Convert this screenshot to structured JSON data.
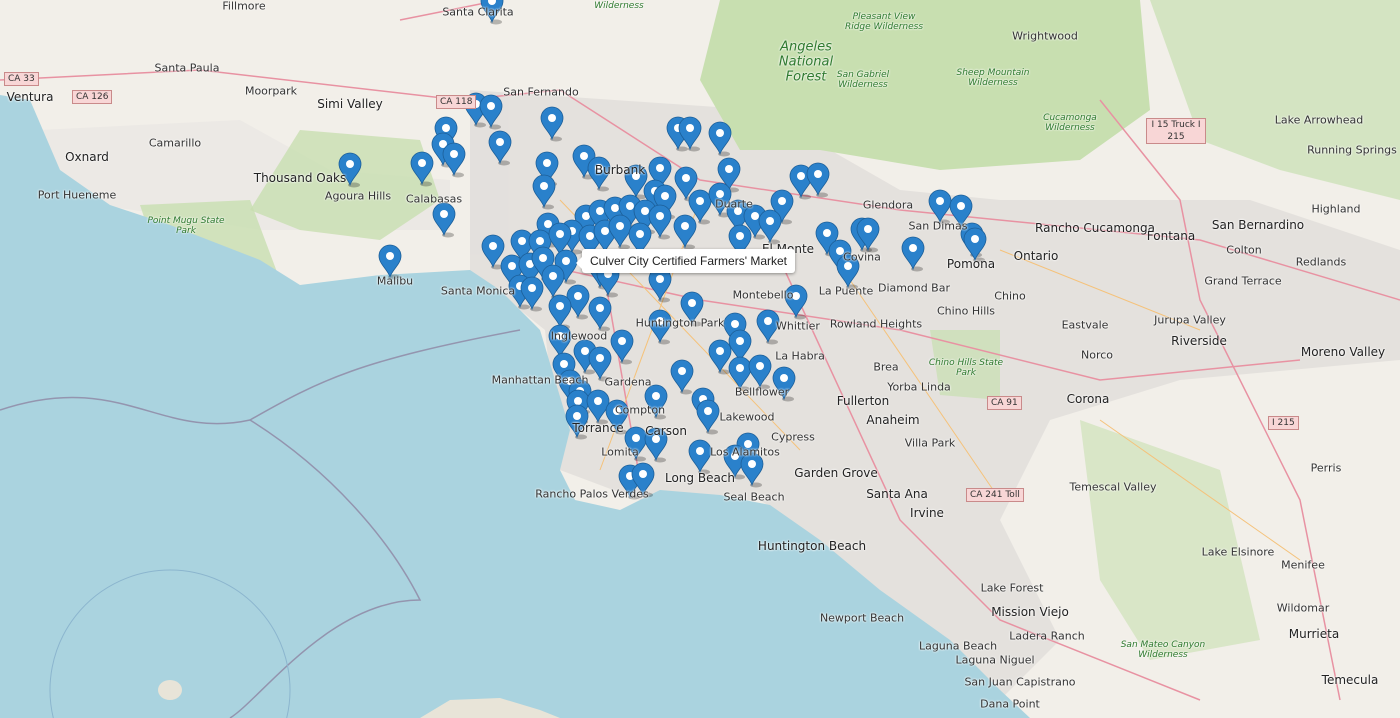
{
  "map": {
    "tile_style": "OpenStreetMap",
    "colors": {
      "ocean": "#aad3df",
      "land": "#f2efe9",
      "park": "#c8dfb0",
      "urban": "#e2dfdc",
      "marker": "#2a81cb",
      "road": "#e892a2"
    },
    "marker_icon": "map-marker-icon",
    "tooltip": "Culver City Certified Farmers' Market",
    "places": [
      "Fillmore",
      "Santa Clarita",
      "Santa Paula",
      "Ventura",
      "Simi Valley",
      "San Fernando",
      "Moorpark",
      "Oxnard",
      "Camarillo",
      "Thousand Oaks",
      "Burbank",
      "Port Hueneme",
      "Agoura Hills",
      "Calabasas",
      "Glendora",
      "San Dimas",
      "Rancho Cucamonga",
      "Fontana",
      "San Bernardino",
      "Highland",
      "Colton",
      "Redlands",
      "El Monte",
      "Covina",
      "Pomona",
      "Ontario",
      "Malibu",
      "Santa Monica",
      "Montebello",
      "La Puente",
      "Diamond Bar",
      "Chino",
      "Grand Terrace",
      "Huntington Park",
      "Whittier",
      "Rowland Heights",
      "Chino Hills",
      "Eastvale",
      "Jurupa Valley",
      "Riverside",
      "Moreno Valley",
      "Inglewood",
      "La Habra",
      "Brea",
      "Norco",
      "Gardena",
      "Compton",
      "Bellflower",
      "Yorba Linda",
      "Fullerton",
      "Corona",
      "Torrance",
      "Carson",
      "Lakewood",
      "Anaheim",
      "Villa Park",
      "Lomita",
      "Cypress",
      "Long Beach",
      "Los Alamitos",
      "Garden Grove",
      "Santa Ana",
      "Perris",
      "Rancho Palos Verdes",
      "Seal Beach",
      "Irvine",
      "Temescal Valley",
      "Lake Elsinore",
      "Huntington Beach",
      "Menifee",
      "Lake Forest",
      "Newport Beach",
      "Mission Viejo",
      "Wildomar",
      "Murrieta",
      "Laguna Beach",
      "Ladera Ranch",
      "Laguna Niguel",
      "San Juan Capistrano",
      "Dana Point",
      "Temecula",
      "Wrightwood",
      "Lake Arrowhead",
      "Running Springs",
      "Duarte",
      "Manhattan Beach"
    ],
    "parks": [
      "Angeles National Forest",
      "San Gabriel Wilderness",
      "Sheep Mountain Wilderness",
      "Cucamonga Wilderness",
      "Pleasant View Ridge Wilderness",
      "Point Mugu State Park",
      "Chino Hills State Park",
      "San Mateo Canyon Wilderness",
      "Wilderness"
    ],
    "route_shields": [
      "CA 33",
      "CA 126",
      "CA 118",
      "I 15 Truck I 215",
      "CA 91",
      "I 215",
      "CA 241 Toll"
    ]
  }
}
